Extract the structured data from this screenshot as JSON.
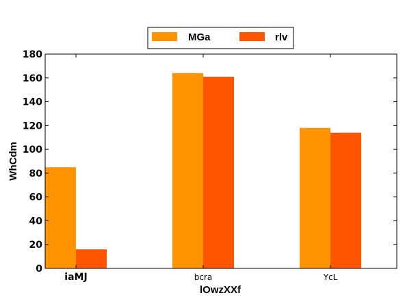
{
  "chart_data": {
    "type": "bar",
    "title": "",
    "xlabel": "lOwzXXf",
    "ylabel": "WhCdm",
    "categories": [
      "iaMJ",
      "bcra",
      "YcL"
    ],
    "series": [
      {
        "name": "MGa",
        "values": [
          85,
          164,
          118
        ],
        "color": "#ff9400"
      },
      {
        "name": "rlv",
        "values": [
          16,
          161,
          114
        ],
        "color": "#ff5500"
      }
    ],
    "ylim": [
      0,
      180
    ],
    "yticks": [
      0,
      20,
      40,
      60,
      80,
      100,
      120,
      140,
      160,
      180
    ],
    "legend": "top-center",
    "grid": false
  }
}
